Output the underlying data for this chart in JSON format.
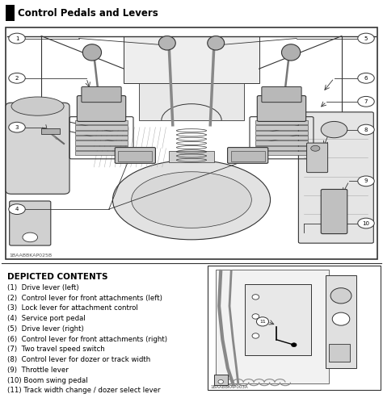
{
  "title": "Control Pedals and Levers",
  "main_image_code_label": "1BAABBKAP025B",
  "side_image_code_label": "1BAABBKAP003A",
  "depicted_contents_title": "DEPICTED CONTENTS",
  "items": [
    "(1)  Drive lever (left)",
    "(2)  Control lever for front attachments (left)",
    "(3)  Lock lever for attachment control",
    "(4)  Service port pedal",
    "(5)  Drive lever (right)",
    "(6)  Control lever for front attachments (right)",
    "(7)  Two travel speed switch",
    "(8)  Control lever for dozer or track width",
    "(9)  Throttle lever",
    "(10) Boom swing pedal",
    "(11) Track width change / dozer select lever"
  ],
  "bg_color": "#ffffff",
  "gray_light": "#d8d8d8",
  "gray_mid": "#bbbbbb",
  "gray_dark": "#888888",
  "line_color": "#333333",
  "title_fontsize": 8.5,
  "item_fontsize": 6.2,
  "depicted_fontsize": 7.5,
  "callout_fontsize": 5.5
}
